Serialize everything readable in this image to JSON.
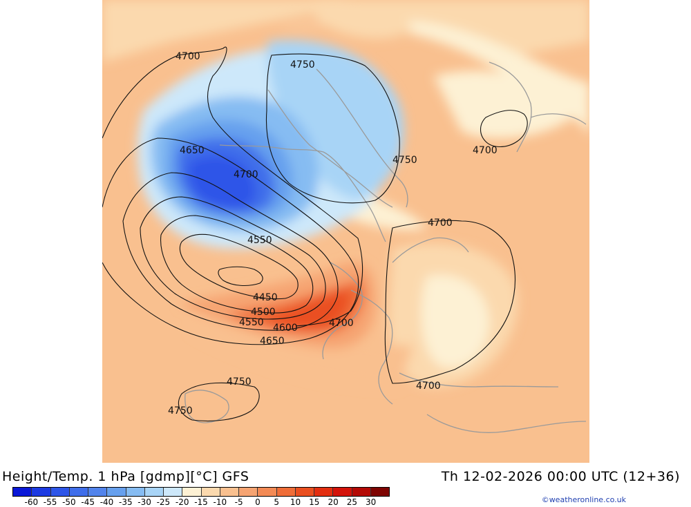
{
  "header": {
    "title": "Height/Temp. 1 hPa [gdmp][°C] GFS",
    "valid_time": "Th 12-02-2026 00:00 UTC (12+36)"
  },
  "map": {
    "contour_labels": [
      {
        "id": "c1",
        "text": "4700"
      },
      {
        "id": "c2",
        "text": "4750"
      },
      {
        "id": "c3",
        "text": "4650"
      },
      {
        "id": "c4",
        "text": "4700"
      },
      {
        "id": "c5",
        "text": "4750"
      },
      {
        "id": "c6",
        "text": "4700"
      },
      {
        "id": "c7",
        "text": "4700"
      },
      {
        "id": "c8",
        "text": "4550"
      },
      {
        "id": "c9",
        "text": "4450"
      },
      {
        "id": "c10",
        "text": "4500"
      },
      {
        "id": "c11",
        "text": "4550"
      },
      {
        "id": "c12",
        "text": "4600"
      },
      {
        "id": "c13",
        "text": "4700"
      },
      {
        "id": "c14",
        "text": "4650"
      },
      {
        "id": "c15",
        "text": "4700"
      },
      {
        "id": "c16",
        "text": "4750"
      },
      {
        "id": "c17",
        "text": "4750"
      }
    ]
  },
  "colorbar": {
    "labels": [
      "-60",
      "-55",
      "-50",
      "-45",
      "-40",
      "-35",
      "-30",
      "-25",
      "-20",
      "-15",
      "-10",
      "-5",
      "0",
      "5",
      "10",
      "15",
      "20",
      "25",
      "30"
    ],
    "colors": [
      "#0a18d8",
      "#1c3ae2",
      "#2d55e8",
      "#3f6eea",
      "#5284ec",
      "#66a0ee",
      "#86bcf2",
      "#a8d4f6",
      "#cde8fa",
      "#fdf1d4",
      "#fbd9ae",
      "#f9c08f",
      "#f6a472",
      "#f38a55",
      "#ef6d38",
      "#ea4f20",
      "#e32e10",
      "#d4130a",
      "#b40a06",
      "#7e0402"
    ]
  },
  "credit": "©weatheronline.co.uk"
}
